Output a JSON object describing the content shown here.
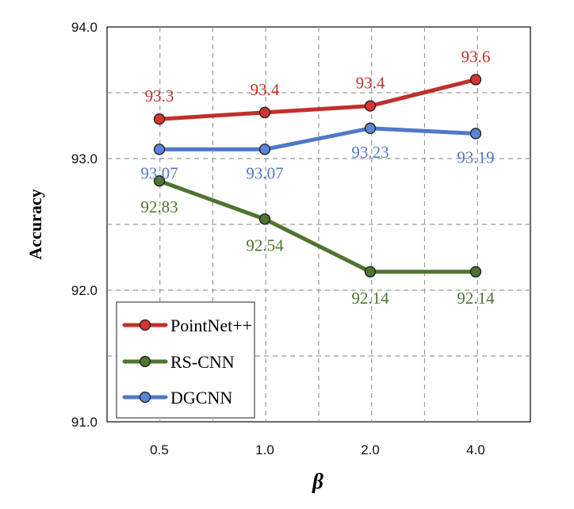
{
  "chart_data": {
    "type": "line",
    "title": "",
    "xlabel": "β",
    "ylabel": "Accuracy",
    "categories": [
      "0.5",
      "1.0",
      "2.0",
      "4.0"
    ],
    "ylim": [
      91.0,
      94.0
    ],
    "yticks": [
      "91.0",
      "92.0",
      "93.0",
      "94.0"
    ],
    "grid": true,
    "grid_style": "dashed",
    "legend_position": "bottom-left",
    "series": [
      {
        "name": "PointNet++",
        "values": [
          93.3,
          93.35,
          93.4,
          93.6
        ],
        "labels": [
          "93.3",
          "93.4",
          "93.4",
          "93.6"
        ],
        "color": "#c0302a",
        "marker_fill": "#d2362f"
      },
      {
        "name": "RS-CNN",
        "values": [
          92.83,
          92.54,
          92.14,
          92.14
        ],
        "labels": [
          "92.83",
          "92.54",
          "92.14",
          "92.14"
        ],
        "color": "#4f7431",
        "marker_fill": "#4f7431"
      },
      {
        "name": "DGCNN",
        "values": [
          93.07,
          93.07,
          93.23,
          93.19
        ],
        "labels": [
          "93.07",
          "93.07",
          "93.23",
          "93.19"
        ],
        "color": "#4f79c8",
        "marker_fill": "#5b86d6"
      }
    ]
  }
}
